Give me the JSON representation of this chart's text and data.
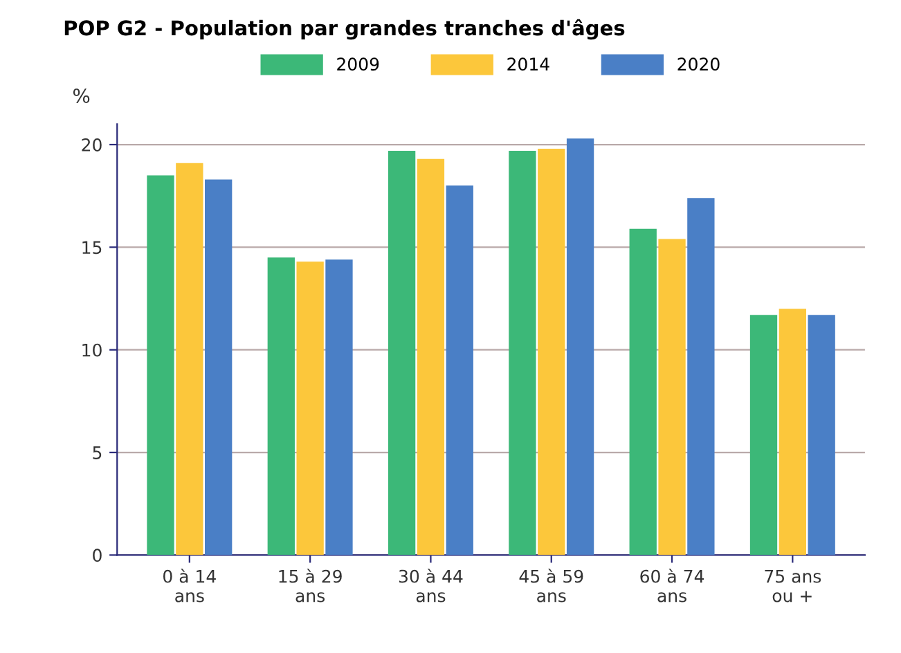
{
  "chart_data": {
    "type": "bar",
    "title": "POP G2 - Population par grandes tranches d'âges",
    "ylabel": "%",
    "categories": [
      "0 à 14\nans",
      "15 à 29\nans",
      "30 à 44\nans",
      "45 à 59\nans",
      "60 à 74\nans",
      "75 ans\nou +"
    ],
    "series": [
      {
        "name": "2009",
        "color": "#3cb878",
        "values": [
          18.5,
          14.5,
          19.7,
          19.7,
          15.9,
          11.7
        ]
      },
      {
        "name": "2014",
        "color": "#fcc73b",
        "values": [
          19.1,
          14.3,
          19.3,
          19.8,
          15.4,
          12.0
        ]
      },
      {
        "name": "2020",
        "color": "#4a7fc6",
        "values": [
          18.3,
          14.4,
          18.0,
          20.3,
          17.4,
          11.7
        ]
      }
    ],
    "ylim": [
      0,
      21
    ],
    "yticks": [
      0,
      5,
      10,
      15,
      20
    ],
    "grid": "y",
    "legend": "top"
  }
}
